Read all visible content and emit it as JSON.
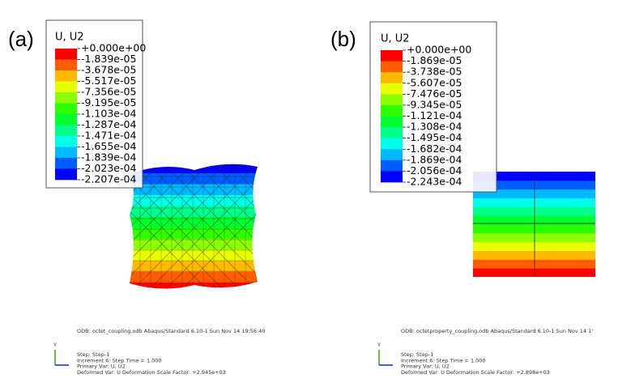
{
  "panels": [
    {
      "label": "(a)",
      "legend": {
        "title": "U, U2",
        "labels": [
          "+0.000e+00",
          "-1.839e-05",
          "-3.678e-05",
          "-5.517e-05",
          "-7.356e-05",
          "-9.195e-05",
          "-1.103e-04",
          "-1.287e-04",
          "-1.471e-04",
          "-1.655e-04",
          "-1.839e-04",
          "-2.023e-04",
          "-2.207e-04"
        ]
      },
      "footer": {
        "odb": "ODB: octet_coupling.odb    Abaqus/Standard 6.10-1    Sun Nov 14 19:56:40",
        "triad_axis": "Y",
        "lines": [
          "Step: Step-1",
          "Increment    6: Step Time =    1.000",
          "Primary Var: U, U2",
          "Deformed Var: U   Deformation Scale Factor: +2.945e+03"
        ]
      }
    },
    {
      "label": "(b)",
      "legend": {
        "title": "U, U2",
        "labels": [
          "+0.000e+00",
          "-1.869e-05",
          "-3.738e-05",
          "-5.607e-05",
          "-7.476e-05",
          "-9.345e-05",
          "-1.121e-04",
          "-1.308e-04",
          "-1.495e-04",
          "-1.682e-04",
          "-1.869e-04",
          "-2.056e-04",
          "-2.243e-04"
        ]
      },
      "footer": {
        "odb": "ODB: octetproperty_coupling.odb    Abaqus/Standard 6.10-1    Sun Nov 14 1'",
        "triad_axis": "Y",
        "lines": [
          "Step: Step-1",
          "Increment    6: Step Time =    1.000",
          "Primary Var: U, U2",
          "Deformed Var: U   Deformation Scale Factor: +2.898e+03"
        ]
      }
    }
  ]
}
